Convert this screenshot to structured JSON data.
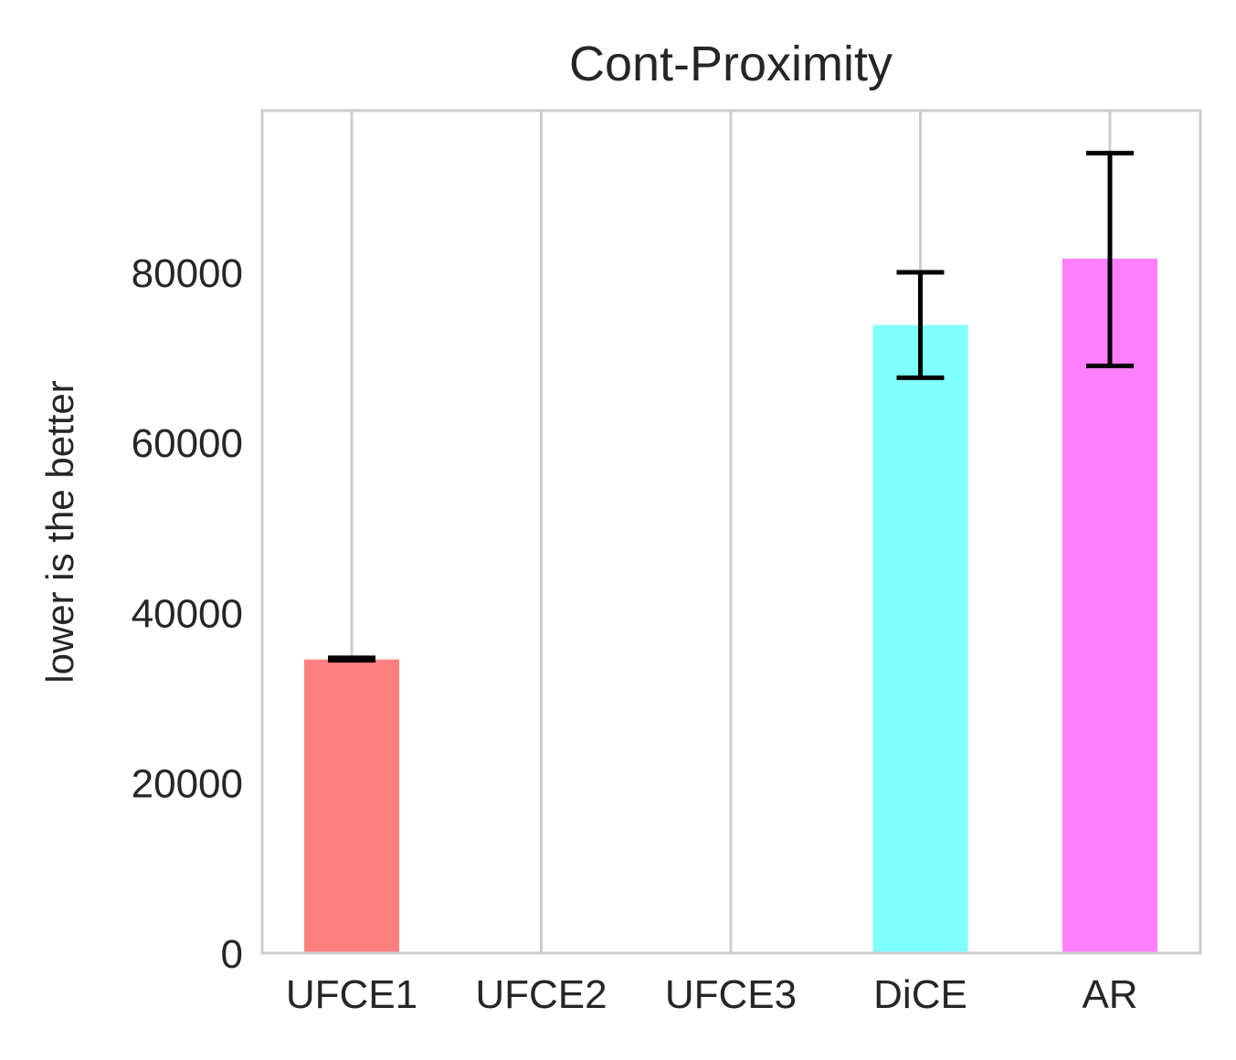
{
  "chart_data": {
    "type": "bar",
    "title": "Cont-Proximity",
    "xlabel": "",
    "ylabel": "lower is the better",
    "categories": [
      "UFCE1",
      "UFCE2",
      "UFCE3",
      "DiCE",
      "AR"
    ],
    "values": [
      34500,
      0,
      0,
      73800,
      81600
    ],
    "error_low": [
      34400,
      0,
      0,
      67600,
      69000
    ],
    "error_high": [
      34700,
      0,
      0,
      80000,
      94000
    ],
    "colors": [
      "#ff7f7f",
      "#7f7f7f",
      "#7f7f7f",
      "#7fffff",
      "#ff7fff"
    ],
    "ylim": [
      0,
      99000
    ],
    "yticks": [
      0,
      20000,
      40000,
      60000,
      80000
    ],
    "grid": "vertical",
    "legend": "none"
  }
}
